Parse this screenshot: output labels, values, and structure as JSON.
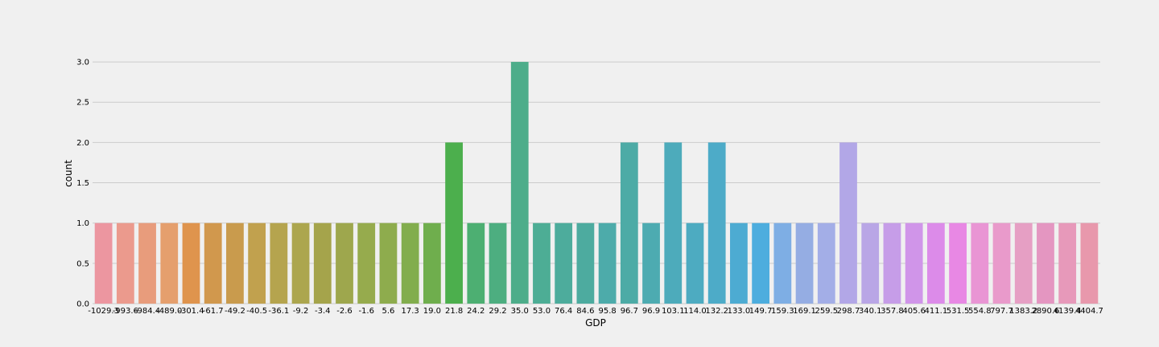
{
  "chart_data": {
    "type": "bar",
    "title": "",
    "xlabel": "GDP",
    "ylabel": "count",
    "ylim": [
      0,
      3.2
    ],
    "yticks": [
      "0.0",
      "0.5",
      "1.0",
      "1.5",
      "2.0",
      "2.5",
      "3.0"
    ],
    "grid": true,
    "categories": [
      "-1029.3",
      "-993.6",
      "-984.4",
      "-489.0",
      "-301.4",
      "-61.7",
      "-49.2",
      "-40.5",
      "-36.1",
      "-9.2",
      "-3.4",
      "-2.6",
      "-1.6",
      "5.6",
      "17.3",
      "19.0",
      "21.8",
      "24.2",
      "29.2",
      "35.0",
      "53.0",
      "76.4",
      "84.6",
      "95.8",
      "96.7",
      "96.9",
      "103.1",
      "114.0",
      "132.2",
      "133.0",
      "149.7",
      "159.3",
      "169.1",
      "259.5",
      "298.7",
      "340.1",
      "357.8",
      "405.6",
      "411.1",
      "531.5",
      "554.8",
      "797.7",
      "1383.2",
      "2890.6",
      "4139.4",
      "4404.7"
    ],
    "values": [
      1,
      1,
      1,
      1,
      1,
      1,
      1,
      1,
      1,
      1,
      1,
      1,
      1,
      1,
      1,
      1,
      2,
      1,
      1,
      3,
      1,
      1,
      1,
      1,
      2,
      1,
      2,
      1,
      2,
      1,
      1,
      1,
      1,
      1,
      2,
      1,
      1,
      1,
      1,
      1,
      1,
      1,
      1,
      1,
      1,
      1
    ],
    "colors": [
      "#ec96a0",
      "#eb9a8d",
      "#e89c7c",
      "#e59f6d",
      "#df944d",
      "#d1984d",
      "#c99b4d",
      "#c1a14e",
      "#b5a44e",
      "#aca64e",
      "#a5a44b",
      "#9ea74d",
      "#96ab4d",
      "#8eac4d",
      "#82ad4d",
      "#6fae4d",
      "#4caf4d",
      "#4daf72",
      "#4dae80",
      "#4dad8a",
      "#4dad95",
      "#4dac9c",
      "#4dab9f",
      "#4dabaa",
      "#4daba6",
      "#4dabb1",
      "#4dabbb",
      "#4dabc1",
      "#4dabc8",
      "#4dabd2",
      "#4dadde",
      "#7eaee4",
      "#95ade3",
      "#a3aee7",
      "#b2a7e7",
      "#b9a6e6",
      "#c69de8",
      "#d095e9",
      "#dc8be9",
      "#e888e4",
      "#e995d4",
      "#e99acb",
      "#e69fc4",
      "#e496c1",
      "#e799ba",
      "#e898ac"
    ]
  }
}
